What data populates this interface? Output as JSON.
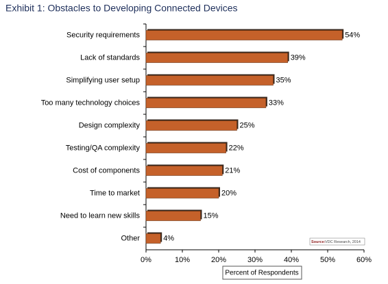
{
  "chart_data": {
    "type": "bar",
    "orientation": "horizontal",
    "title": "Exhibit 1: Obstacles to Developing Connected Devices",
    "categories": [
      "Security requirements",
      "Lack of standards",
      "Simplifying user setup",
      "Too many technology choices",
      "Design complexity",
      "Testing/QA complexity",
      "Cost of components",
      "Time to market",
      "Need to learn new skills",
      "Other"
    ],
    "values": [
      54,
      39,
      35,
      33,
      25,
      22,
      21,
      20,
      15,
      4
    ],
    "value_labels": [
      "54%",
      "39%",
      "35%",
      "33%",
      "25%",
      "22%",
      "21%",
      "20%",
      "15%",
      "4%"
    ],
    "color": "#c5612a",
    "xlim": [
      0,
      60
    ],
    "xticks": [
      {
        "value": 0,
        "label": "0%"
      },
      {
        "value": 10,
        "label": "10%"
      },
      {
        "value": 20,
        "label": "20%"
      },
      {
        "value": 30,
        "label": "30%"
      },
      {
        "value": 40,
        "label": "40%"
      },
      {
        "value": 50,
        "label": "50%"
      },
      {
        "value": 60,
        "label": "60%"
      }
    ],
    "xlabel": "Percent of Respondents",
    "source_label": "Source:",
    "source": "VDC Research, 2014"
  }
}
